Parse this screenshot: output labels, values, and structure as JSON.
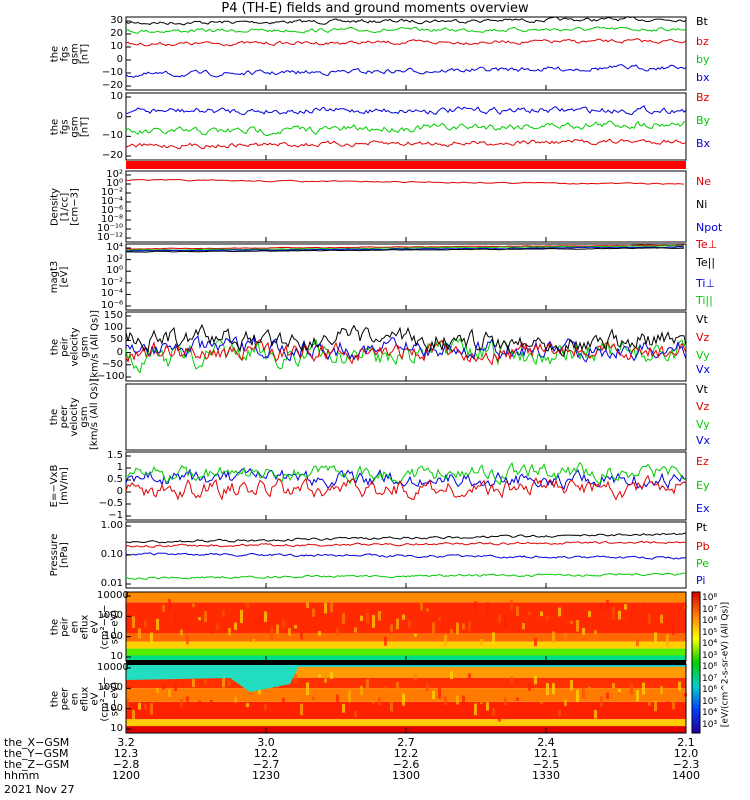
{
  "title": "P4 (TH-E) fields and ground moments overview",
  "date": "2021 Nov 27",
  "panels": [
    {
      "id": "fgs_gsm",
      "ylabel": "the\nfgs\ngsm\n[nT]",
      "ticks": [
        "30",
        "20",
        "10",
        "0",
        "−10",
        "−20"
      ],
      "legend": [
        {
          "t": "Bt",
          "c": "#000000"
        },
        {
          "t": "bz",
          "c": "#e00000"
        },
        {
          "t": "by",
          "c": "#00cc00"
        },
        {
          "t": "bx",
          "c": "#0000dd"
        }
      ]
    },
    {
      "id": "fgs_dsl",
      "ylabel": "the\nfgs\ngsm\n[nT]",
      "ticks": [
        "10",
        "0",
        "−10",
        "−20"
      ],
      "legend": [
        {
          "t": "Bz",
          "c": "#e00000"
        },
        {
          "t": "By",
          "c": "#00cc00"
        },
        {
          "t": "Bx",
          "c": "#0000dd"
        }
      ]
    },
    {
      "id": "density",
      "ylabel": "Density\n[1/cc]\n[cm−3]",
      "ticks": [
        "10²",
        "10⁰",
        "10⁻²",
        "10⁻⁴",
        "10⁻⁶",
        "10⁻⁸",
        "10⁻¹⁰",
        "10⁻¹²"
      ],
      "legend": [
        {
          "t": "Ne",
          "c": "#e00000"
        },
        {
          "t": "Ni",
          "c": "#000000"
        },
        {
          "t": "Npot",
          "c": "#0000dd"
        }
      ]
    },
    {
      "id": "temp",
      "ylabel": "magt3\n[eV]",
      "ticks": [
        "10⁴",
        "10²",
        "10⁰",
        "10⁻²",
        "10⁻⁴",
        "10⁻⁶"
      ],
      "legend": [
        {
          "t": "Te⊥",
          "c": "#e00000"
        },
        {
          "t": "Te||",
          "c": "#000000"
        },
        {
          "t": "Ti⊥",
          "c": "#0000dd"
        },
        {
          "t": "Ti||",
          "c": "#00cc00"
        }
      ]
    },
    {
      "id": "peir_vel",
      "ylabel": "the\npeir\nvelocity\ngsm\n[km/s (All Qs)]",
      "ticks": [
        "150",
        "100",
        "50",
        "0",
        "−50",
        "−100"
      ],
      "legend": [
        {
          "t": "Vt",
          "c": "#000000"
        },
        {
          "t": "Vz",
          "c": "#e00000"
        },
        {
          "t": "Vy",
          "c": "#00cc00"
        },
        {
          "t": "Vx",
          "c": "#0000dd"
        }
      ]
    },
    {
      "id": "peer_vel",
      "ylabel": "the\npeer\nvelocity\ngsm\n[km/s (All Qs)]",
      "ticks": [],
      "legend": [
        {
          "t": "Vt",
          "c": "#000000"
        },
        {
          "t": "Vz",
          "c": "#e00000"
        },
        {
          "t": "Vy",
          "c": "#00cc00"
        },
        {
          "t": "Vx",
          "c": "#0000dd"
        }
      ]
    },
    {
      "id": "efield",
      "ylabel": "E=−VxB\n[mV/m]",
      "ticks": [
        "1.5",
        "1",
        "0.5",
        "0",
        "−0.5",
        "−1"
      ],
      "legend": [
        {
          "t": "Ez",
          "c": "#e00000"
        },
        {
          "t": "Ey",
          "c": "#00cc00"
        },
        {
          "t": "Ex",
          "c": "#0000dd"
        }
      ]
    },
    {
      "id": "pressure",
      "ylabel": "Pressure\n[nPa]",
      "ticks": [
        "1.00",
        "0.10",
        "0.01"
      ],
      "legend": [
        {
          "t": "Pt",
          "c": "#000000"
        },
        {
          "t": "Pb",
          "c": "#e00000"
        },
        {
          "t": "Pe",
          "c": "#00cc00"
        },
        {
          "t": "Pi",
          "c": "#0000dd"
        }
      ]
    },
    {
      "id": "peir_flux",
      "ylabel": "the\npeir\nen\neflux\neV\n(cm²−s−\nsr−eV)",
      "ticks": [
        "10000",
        "1000",
        "100",
        "10"
      ],
      "legend": []
    },
    {
      "id": "peer_flux",
      "ylabel": "the\npeer\nen\neflux\neV\n(cm²−s−\nsr−eV)",
      "ticks": [
        "10000",
        "1000",
        "100",
        "10"
      ],
      "legend": []
    }
  ],
  "colorbar": {
    "top_ticks": [
      "10⁸",
      "10⁷",
      "10⁶",
      "10⁵",
      "10⁴",
      "10³"
    ],
    "bottom_ticks": [
      "10⁸",
      "10⁷",
      "10⁶",
      "10⁵",
      "10⁴",
      "10³"
    ],
    "label": "[eV/(cm^2-s-sr-eV) (All Qs)]"
  },
  "ephemeris": {
    "row_labels": [
      "the_X−GSM",
      "the_Y−GSM",
      "the_Z−GSM",
      "hhmm"
    ],
    "columns": [
      [
        "3.2",
        "12.3",
        "−2.8",
        "1200"
      ],
      [
        "3.0",
        "12.2",
        "−2.7",
        "1230"
      ],
      [
        "2.7",
        "12.2",
        "−2.6",
        "1300"
      ],
      [
        "2.4",
        "12.1",
        "−2.5",
        "1330"
      ],
      [
        "2.1",
        "12.0",
        "−2.3",
        "1400"
      ]
    ]
  },
  "chart_data": {
    "type": "line",
    "title": "P4 (TH-E) fields and ground moments overview",
    "date": "2021 Nov 27",
    "x_ticks": [
      "1200",
      "1230",
      "1300",
      "1330",
      "1400"
    ],
    "series_overview": [
      {
        "panel": "fgs_gsm",
        "name": "Bt",
        "approx_values": [
          24,
          26,
          28,
          28,
          30
        ]
      },
      {
        "panel": "fgs_gsm",
        "name": "bz",
        "approx_values": [
          10,
          14,
          14,
          14,
          15
        ]
      },
      {
        "panel": "fgs_gsm",
        "name": "by",
        "approx_values": [
          20,
          20,
          24,
          24,
          24
        ]
      },
      {
        "panel": "fgs_gsm",
        "name": "bx",
        "approx_values": [
          -12,
          -10,
          -8,
          -6,
          -5
        ]
      },
      {
        "panel": "fgs_dsl",
        "name": "Bz",
        "approx_values": [
          -14,
          -12,
          -12,
          -12,
          -10
        ]
      },
      {
        "panel": "fgs_dsl",
        "name": "By",
        "approx_values": [
          -6,
          -8,
          -3,
          0,
          0
        ]
      },
      {
        "panel": "fgs_dsl",
        "name": "Bx",
        "approx_values": [
          8,
          10,
          10,
          10,
          10
        ]
      },
      {
        "panel": "peir_vel",
        "name": "Vt",
        "approx_values": [
          60,
          50,
          60,
          60,
          50
        ]
      },
      {
        "panel": "efield",
        "name": "Ey",
        "approx_values": [
          0.2,
          0.4,
          0.4,
          0.4,
          0.3
        ]
      },
      {
        "panel": "pressure",
        "name": "Pt",
        "approx_values": [
          0.4,
          0.5,
          0.5,
          0.55,
          0.6
        ]
      },
      {
        "panel": "pressure",
        "name": "Pb",
        "approx_values": [
          0.3,
          0.35,
          0.35,
          0.4,
          0.4
        ]
      },
      {
        "panel": "pressure",
        "name": "Pe",
        "approx_values": [
          0.02,
          0.02,
          0.025,
          0.025,
          0.025
        ]
      },
      {
        "panel": "pressure",
        "name": "Pi",
        "approx_values": [
          0.1,
          0.08,
          0.08,
          0.07,
          0.07
        ]
      }
    ]
  }
}
